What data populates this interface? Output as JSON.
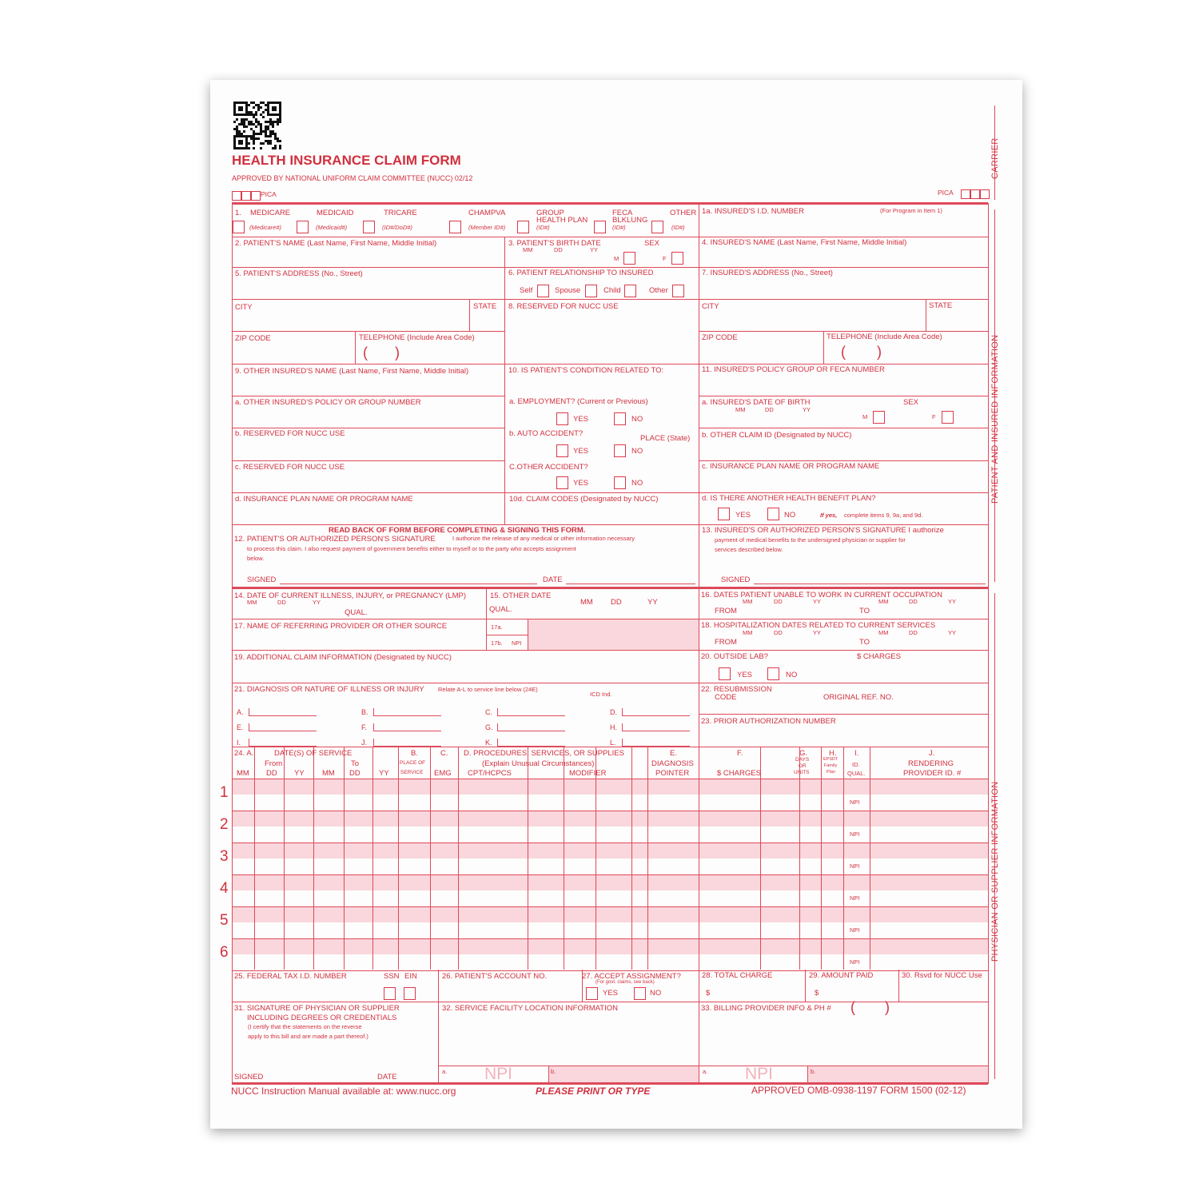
{
  "header": {
    "title": "HEALTH INSURANCE CLAIM FORM",
    "approved": "APPROVED BY NATIONAL UNIFORM CLAIM COMMITTEE (NUCC) 02/12",
    "pica_left": "PICA",
    "pica_right": "PICA"
  },
  "side": {
    "carrier": "CARRIER",
    "patient": "PATIENT AND INSURED INFORMATION",
    "physician": "PHYSICIAN OR SUPPLIER INFORMATION"
  },
  "box1": {
    "num": "1.",
    "medicare": "MEDICARE",
    "medicaid": "MEDICAID",
    "tricare": "TRICARE",
    "champva": "CHAMPVA",
    "group1": "GROUP",
    "group2": "HEALTH PLAN",
    "feca1": "FECA",
    "feca2": "BLKLUNG",
    "other": "OTHER",
    "sub_medicare": "(Medicare#)",
    "sub_medicaid": "(Medicaid#)",
    "sub_tricare": "(ID#/DoD#)",
    "sub_champva": "(Member ID#)",
    "sub_group": "(ID#)",
    "sub_feca": "(ID#)",
    "sub_other": "(ID#)"
  },
  "box1a": {
    "label": "1a. INSURED'S I.D. NUMBER",
    "note": "(For Program in Item 1)"
  },
  "box2": "2. PATIENT'S NAME (Last Name, First Name, Middle Initial)",
  "box3": {
    "label": "3. PATIENT'S BIRTH DATE",
    "sex": "SEX",
    "mm": "MM",
    "dd": "DD",
    "yy": "YY",
    "m": "M",
    "f": "F"
  },
  "box4": "4. INSURED'S NAME (Last Name, First Name, Middle Initial)",
  "box5": {
    "label": "5. PATIENT'S ADDRESS (No., Street)",
    "city": "CITY",
    "state": "STATE",
    "zip": "ZIP CODE",
    "tel": "TELEPHONE (Include Area Code)",
    "paren_open": "(",
    "paren_close": ")"
  },
  "box6": {
    "label": "6. PATIENT RELATIONSHIP TO INSURED",
    "self": "Self",
    "spouse": "Spouse",
    "child": "Child",
    "other": "Other"
  },
  "box7": {
    "label": "7. INSURED'S ADDRESS (No., Street)",
    "city": "CITY",
    "state": "STATE",
    "zip": "ZIP CODE",
    "tel": "TELEPHONE (Include Area Code)",
    "paren_open": "(",
    "paren_close": ")"
  },
  "box8": "8. RESERVED FOR NUCC USE",
  "box9": {
    "label": "9. OTHER INSURED'S NAME (Last Name, First Name, Middle Initial)",
    "a": "a. OTHER INSURED'S POLICY OR GROUP NUMBER",
    "b": "b. RESERVED FOR NUCC USE",
    "c": "c. RESERVED FOR NUCC USE",
    "d": "d. INSURANCE PLAN NAME OR PROGRAM NAME"
  },
  "box10": {
    "label": "10. IS PATIENT'S CONDITION RELATED TO:",
    "a": "a. EMPLOYMENT? (Current or Previous)",
    "b": "b. AUTO ACCIDENT?",
    "place": "PLACE (State)",
    "c": "C.OTHER ACCIDENT?",
    "d": "10d. CLAIM CODES (Designated by NUCC)",
    "yes": "YES",
    "no": "NO"
  },
  "box11": {
    "label": "11. INSURED'S POLICY GROUP OR FECA NUMBER",
    "a": "a. INSURED'S DATE OF BIRTH",
    "sex": "SEX",
    "mm": "MM",
    "dd": "DD",
    "yy": "YY",
    "m": "M",
    "f": "F",
    "b": "b. OTHER CLAIM ID (Designated by NUCC)",
    "c": "c. INSURANCE PLAN NAME OR PROGRAM NAME",
    "d": "d. IS THERE ANOTHER HEALTH BENEFIT PLAN?",
    "yes": "YES",
    "no": "NO",
    "ifyes_b": "If yes,",
    "ifyes": "complete items 9, 9a, and 9d."
  },
  "box12": {
    "readback": "READ BACK OF FORM BEFORE COMPLETING & SIGNING THIS FORM.",
    "label": "12. PATIENT'S OR AUTHORIZED PERSON'S SIGNATURE",
    "text1": "I authorize the release of any medical or other information  necessary",
    "text2": "to process this claim. I also request payment of government benefits either to myself or to the party who accepts assignment",
    "text3": "below.",
    "signed": "SIGNED",
    "date": "DATE"
  },
  "box13": {
    "label": "13. INSURED'S OR AUTHORIZED PERSON'S SIGNATURE I authorize",
    "text1": "payment of medical benefits to the undersigned physician or supplier for",
    "text2": "services described below.",
    "signed": "SIGNED"
  },
  "box14": {
    "label": "14. DATE OF CURRENT ILLNESS, INJURY, or PREGNANCY (LMP)",
    "mm": "MM",
    "dd": "DD",
    "yy": "YY",
    "qual": "QUAL."
  },
  "box15": {
    "label": "15. OTHER DATE",
    "qual": "QUAL.",
    "mm": "MM",
    "dd": "DD",
    "yy": "YY"
  },
  "box16": {
    "label": "16. DATES PATIENT UNABLE TO WORK IN CURRENT OCCUPATION",
    "mm": "MM",
    "dd": "DD",
    "yy": "YY",
    "from": "FROM",
    "to": "TO"
  },
  "box17": {
    "label": "17. NAME OF REFERRING PROVIDER OR OTHER SOURCE",
    "a": "17a.",
    "b": "17b.",
    "npi": "NPI"
  },
  "box18": {
    "label": "18. HOSPITALIZATION DATES RELATED TO CURRENT SERVICES",
    "mm": "MM",
    "dd": "DD",
    "yy": "YY",
    "from": "FROM",
    "to": "TO"
  },
  "box19": "19. ADDITIONAL CLAIM INFORMATION (Designated by NUCC)",
  "box20": {
    "label": "20. OUTSIDE LAB?",
    "charges": "$ CHARGES",
    "yes": "YES",
    "no": "NO"
  },
  "box21": {
    "label": "21. DIAGNOSIS OR NATURE OF ILLNESS OR INJURY",
    "note": "Relate A-L to service line below (24E)",
    "icd": "ICD Ind.",
    "letters": [
      "A.",
      "B.",
      "C.",
      "D.",
      "E.",
      "F.",
      "G.",
      "H.",
      "I.",
      "J.",
      "K.",
      "L."
    ]
  },
  "box22": {
    "label1": "22. RESUBMISSION",
    "label2": "CODE",
    "orig": "ORIGINAL REF. NO."
  },
  "box23": "23. PRIOR AUTHORIZATION NUMBER",
  "box24": {
    "a": "24. A.",
    "dates": "DATE(S) OF SERVICE",
    "from": "From",
    "to": "To",
    "mm": "MM",
    "dd": "DD",
    "yy": "YY",
    "b": "B.",
    "place1": "PLACE OF",
    "place2": "SERVICE",
    "c": "C.",
    "emg": "EMG",
    "d": "D. PROCEDURES, SERVICES, OR SUPPLIES",
    "explain": "(Explain Unusual Circumstances)",
    "cpt": "CPT/HCPCS",
    "modifier": "MODIFIER",
    "e": "E.",
    "diag1": "DIAGNOSIS",
    "diag2": "POINTER",
    "f": "F.",
    "charges": "$ CHARGES",
    "g": "G.",
    "days1": "DAYS",
    "days2": "OR",
    "days3": "UNITS",
    "h": "H.",
    "epsdt1": "EPSDT",
    "epsdt2": "Family",
    "epsdt3": "Plan",
    "i": "I.",
    "id": "ID.",
    "qual": "QUAL.",
    "j": "J.",
    "rend1": "RENDERING",
    "rend2": "PROVIDER ID. #",
    "npi": "NPI",
    "rows": [
      "1",
      "2",
      "3",
      "4",
      "5",
      "6"
    ]
  },
  "box25": {
    "label": "25. FEDERAL TAX I.D. NUMBER",
    "ssn": "SSN",
    "ein": "EIN"
  },
  "box26": "26. PATIENT'S ACCOUNT NO.",
  "box27": {
    "label": "27. ACCEPT ASSIGNMENT?",
    "note": "(For govt. claims, see back)",
    "yes": "YES",
    "no": "NO"
  },
  "box28": {
    "label": "28. TOTAL CHARGE",
    "dollar": "$"
  },
  "box29": {
    "label": "29. AMOUNT PAID",
    "dollar": "$"
  },
  "box30": "30. Rsvd for NUCC Use",
  "box31": {
    "l1": "31. SIGNATURE OF PHYSICIAN OR SUPPLIER",
    "l2": "INCLUDING DEGREES OR CREDENTIALS",
    "l3": "(I certify that the statements on the reverse",
    "l4": "apply to this bill and are made a part thereof.)",
    "signed": "SIGNED",
    "date": "DATE"
  },
  "box32": {
    "label": "32. SERVICE FACILITY LOCATION INFORMATION",
    "a": "a.",
    "b": "b.",
    "npi": "NPI"
  },
  "box33": {
    "label": "33. BILLING PROVIDER INFO & PH #",
    "paren_open": "(",
    "paren_close": ")",
    "a": "a.",
    "b": "b.",
    "npi": "NPI"
  },
  "footer": {
    "manual": "NUCC Instruction Manual available at: www.nucc.org",
    "print": "PLEASE PRINT OR TYPE",
    "omb": "APPROVED OMB-0938-1197 FORM 1500 (02-12)"
  },
  "colors": {
    "form_red": "#d0303f",
    "shade": "#f9d7dc"
  }
}
